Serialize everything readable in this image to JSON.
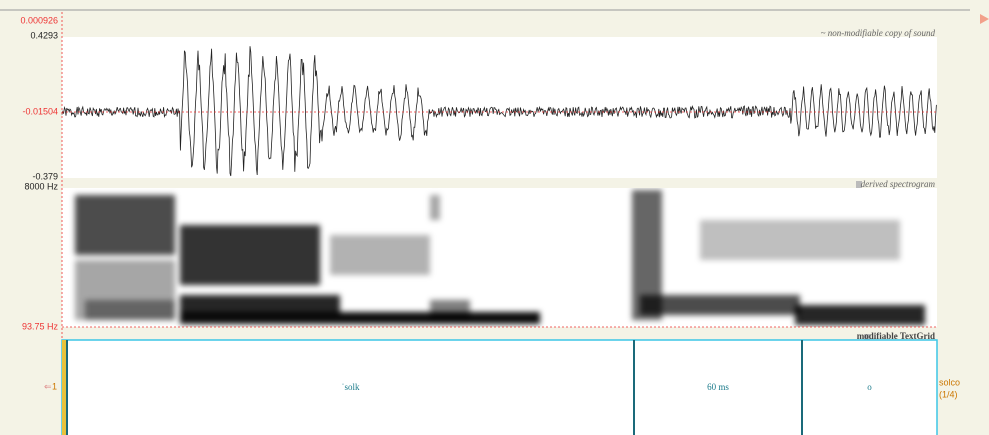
{
  "cursor_time": "0.000926",
  "sound": {
    "max": "0.4293",
    "cursor_value": "-0.01504",
    "min": "-0.379",
    "label": "~ non-modifiable copy of sound"
  },
  "spectrogram": {
    "max": "8000 Hz",
    "min": "93.75 Hz",
    "label": "derived spectrogram"
  },
  "textgrid": {
    "label": "modifiable TextGrid",
    "tier_number": "1",
    "tier_name": "solco",
    "tier_count": "(1/4)",
    "intervals": [
      "ˈsolk",
      "60 ms",
      "o"
    ]
  }
}
